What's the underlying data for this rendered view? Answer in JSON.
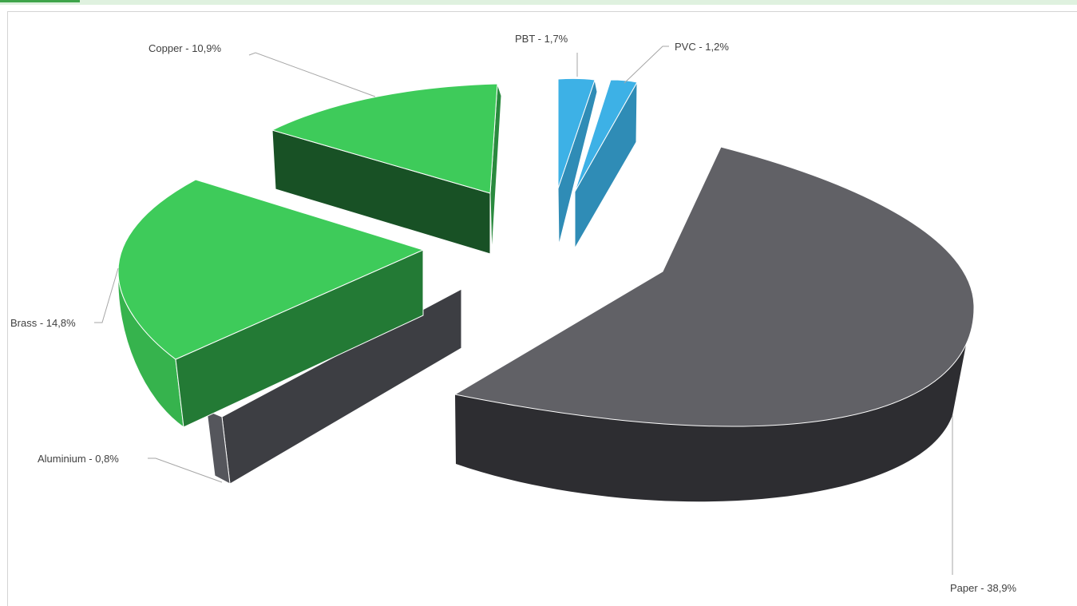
{
  "chart_data": {
    "type": "pie",
    "style": "3d-exploded",
    "title": "",
    "legend": "none",
    "slices": [
      {
        "name": "Paper",
        "value": 38.9,
        "label": "Paper - 38,9%",
        "top_color": "#616166",
        "side_color": "#2d2d31"
      },
      {
        "name": "Aluminium",
        "value": 0.8,
        "label": "Aluminium - 0,8%",
        "top_color": "#5a5a60",
        "side_color": "#3d3e43"
      },
      {
        "name": "Brass",
        "value": 14.8,
        "label": "Brass - 14,8%",
        "top_color": "#3ecb5a",
        "side_color": "#237a35"
      },
      {
        "name": "Copper",
        "value": 10.9,
        "label": "Copper - 10,9%",
        "top_color": "#3ecb5a",
        "side_color": "#185125"
      },
      {
        "name": "PBT",
        "value": 1.7,
        "label": "PBT - 1,7%",
        "top_color": "#3db1e6",
        "side_color": "#2f8cb6"
      },
      {
        "name": "PVC",
        "value": 1.2,
        "label": "PVC - 1,2%",
        "top_color": "#3db1e6",
        "side_color": "#2f8cb6"
      }
    ]
  }
}
